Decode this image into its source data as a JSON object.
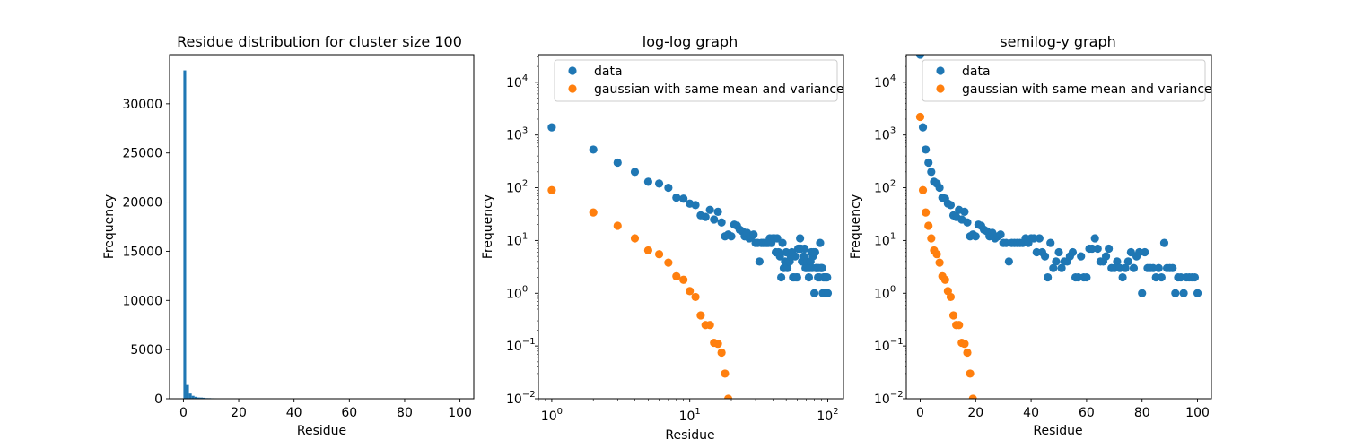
{
  "chart_data": [
    {
      "type": "bar",
      "title": "Residue distribution for cluster size 100",
      "xlabel": "Residue",
      "ylabel": "Frequency",
      "xlim": [
        -5,
        105
      ],
      "ylim": [
        0,
        35000
      ],
      "xticks": [
        0,
        20,
        40,
        60,
        80,
        100
      ],
      "yticks": [
        0,
        5000,
        10000,
        15000,
        20000,
        25000,
        30000
      ],
      "bin_width": 1,
      "bins": [
        {
          "x": 0,
          "value": 33400
        },
        {
          "x": 1,
          "value": 1400
        },
        {
          "x": 2,
          "value": 530
        },
        {
          "x": 3,
          "value": 300
        },
        {
          "x": 4,
          "value": 200
        },
        {
          "x": 5,
          "value": 130
        },
        {
          "x": 6,
          "value": 120
        },
        {
          "x": 7,
          "value": 100
        },
        {
          "x": 8,
          "value": 65
        },
        {
          "x": 9,
          "value": 62
        },
        {
          "x": 10,
          "value": 50
        },
        {
          "x": 11,
          "value": 47
        },
        {
          "x": 12,
          "value": 30
        },
        {
          "x": 13,
          "value": 28
        },
        {
          "x": 14,
          "value": 38
        }
      ],
      "color": "#1f77b4"
    },
    {
      "type": "scatter",
      "title": "log-log graph",
      "xlabel": "Residue",
      "ylabel": "Frequency",
      "xscale": "log",
      "yscale": "log",
      "xlim": [
        0.8,
        130
      ],
      "ylim": [
        0.01,
        33400
      ],
      "xticks": [
        {
          "value": 1,
          "base": "10",
          "exp": "0"
        },
        {
          "value": 10,
          "base": "10",
          "exp": "1"
        },
        {
          "value": 100,
          "base": "10",
          "exp": "2"
        }
      ],
      "yticks": [
        {
          "value": 0.01,
          "base": "10",
          "exp": "−2"
        },
        {
          "value": 0.1,
          "base": "10",
          "exp": "−1"
        },
        {
          "value": 1,
          "base": "10",
          "exp": "0"
        },
        {
          "value": 10,
          "base": "10",
          "exp": "1"
        },
        {
          "value": 100,
          "base": "10",
          "exp": "2"
        },
        {
          "value": 1000,
          "base": "10",
          "exp": "3"
        },
        {
          "value": 10000,
          "base": "10",
          "exp": "4"
        }
      ],
      "legend_position": "top-right",
      "series": [
        {
          "name": "data",
          "color": "#1f77b4",
          "points": [
            [
              1,
              1400
            ],
            [
              2,
              530
            ],
            [
              3,
              300
            ],
            [
              4,
              200
            ],
            [
              5,
              130
            ],
            [
              6,
              120
            ],
            [
              7,
              100
            ],
            [
              8,
              65
            ],
            [
              9,
              62
            ],
            [
              10,
              50
            ],
            [
              11,
              47
            ],
            [
              12,
              30
            ],
            [
              13,
              28
            ],
            [
              14,
              38
            ],
            [
              15,
              25
            ],
            [
              16,
              35
            ],
            [
              17,
              22
            ],
            [
              18,
              12
            ],
            [
              19,
              13
            ],
            [
              20,
              12
            ],
            [
              21,
              20
            ],
            [
              22,
              19
            ],
            [
              23,
              16
            ],
            [
              24,
              15
            ],
            [
              25,
              12
            ],
            [
              26,
              14
            ],
            [
              27,
              11
            ],
            [
              28,
              12
            ],
            [
              29,
              13
            ],
            [
              30,
              9
            ],
            [
              31,
              9
            ],
            [
              32,
              4
            ],
            [
              33,
              9
            ],
            [
              34,
              9
            ],
            [
              35,
              9
            ],
            [
              36,
              9
            ],
            [
              37,
              9
            ],
            [
              38,
              11
            ],
            [
              39,
              9
            ],
            [
              40,
              11
            ],
            [
              41,
              11
            ],
            [
              42,
              6
            ],
            [
              43,
              11
            ],
            [
              44,
              6
            ],
            [
              45,
              5
            ],
            [
              46,
              2
            ],
            [
              47,
              9
            ],
            [
              48,
              3
            ],
            [
              49,
              4
            ],
            [
              50,
              6
            ],
            [
              51,
              3
            ],
            [
              52,
              4
            ],
            [
              53,
              4
            ],
            [
              54,
              5
            ],
            [
              55,
              6
            ],
            [
              56,
              2
            ],
            [
              57,
              2
            ],
            [
              58,
              5
            ],
            [
              59,
              2
            ],
            [
              60,
              2
            ],
            [
              61,
              7
            ],
            [
              62,
              7
            ],
            [
              63,
              11
            ],
            [
              64,
              7
            ],
            [
              65,
              4
            ],
            [
              66,
              4
            ],
            [
              67,
              5
            ],
            [
              68,
              7
            ],
            [
              69,
              3
            ],
            [
              70,
              3
            ],
            [
              71,
              4
            ],
            [
              72,
              3
            ],
            [
              73,
              2
            ],
            [
              74,
              3
            ],
            [
              75,
              4
            ],
            [
              76,
              6
            ],
            [
              77,
              3
            ],
            [
              78,
              5
            ],
            [
              79,
              6
            ],
            [
              80,
              1
            ],
            [
              81,
              6
            ],
            [
              82,
              3
            ],
            [
              83,
              3
            ],
            [
              84,
              3
            ],
            [
              85,
              2
            ],
            [
              86,
              3
            ],
            [
              87,
              2
            ],
            [
              88,
              9
            ],
            [
              89,
              3
            ],
            [
              90,
              3
            ],
            [
              91,
              3
            ],
            [
              92,
              1
            ],
            [
              93,
              2
            ],
            [
              94,
              2
            ],
            [
              95,
              1
            ],
            [
              96,
              2
            ],
            [
              97,
              2
            ],
            [
              98,
              2
            ],
            [
              99,
              2
            ],
            [
              100,
              1
            ]
          ]
        },
        {
          "name": "gaussian with same mean and variance",
          "color": "#ff7f0e",
          "points": [
            [
              1,
              90
            ],
            [
              2,
              34
            ],
            [
              3,
              19
            ],
            [
              4,
              11
            ],
            [
              5,
              6.5
            ],
            [
              6,
              5.5
            ],
            [
              7,
              3.8
            ],
            [
              8,
              2.1
            ],
            [
              9,
              1.8
            ],
            [
              10,
              1.1
            ],
            [
              11,
              0.85
            ],
            [
              12,
              0.38
            ],
            [
              13,
              0.25
            ],
            [
              14,
              0.25
            ],
            [
              15,
              0.115
            ],
            [
              16,
              0.11
            ],
            [
              17,
              0.075
            ],
            [
              18,
              0.03
            ],
            [
              19,
              0.01
            ]
          ]
        }
      ]
    },
    {
      "type": "scatter",
      "title": "semilog-y graph",
      "xlabel": "Residue",
      "ylabel": "Frequency",
      "xscale": "linear",
      "yscale": "log",
      "xlim": [
        -5,
        105
      ],
      "ylim": [
        0.01,
        33400
      ],
      "xticks": [
        {
          "value": 0,
          "label": "0"
        },
        {
          "value": 20,
          "label": "20"
        },
        {
          "value": 40,
          "label": "40"
        },
        {
          "value": 60,
          "label": "60"
        },
        {
          "value": 80,
          "label": "80"
        },
        {
          "value": 100,
          "label": "100"
        }
      ],
      "yticks": [
        {
          "value": 0.01,
          "base": "10",
          "exp": "−2"
        },
        {
          "value": 0.1,
          "base": "10",
          "exp": "−1"
        },
        {
          "value": 1,
          "base": "10",
          "exp": "0"
        },
        {
          "value": 10,
          "base": "10",
          "exp": "1"
        },
        {
          "value": 100,
          "base": "10",
          "exp": "2"
        },
        {
          "value": 1000,
          "base": "10",
          "exp": "3"
        },
        {
          "value": 10000,
          "base": "10",
          "exp": "4"
        }
      ],
      "legend_position": "top-right",
      "series": [
        {
          "name": "data",
          "color": "#1f77b4",
          "points": [
            [
              0,
              33400
            ],
            [
              1,
              1400
            ],
            [
              2,
              530
            ],
            [
              3,
              300
            ],
            [
              4,
              200
            ],
            [
              5,
              130
            ],
            [
              6,
              120
            ],
            [
              7,
              100
            ],
            [
              8,
              65
            ],
            [
              9,
              62
            ],
            [
              10,
              50
            ],
            [
              11,
              47
            ],
            [
              12,
              30
            ],
            [
              13,
              28
            ],
            [
              14,
              38
            ],
            [
              15,
              25
            ],
            [
              16,
              35
            ],
            [
              17,
              22
            ],
            [
              18,
              12
            ],
            [
              19,
              13
            ],
            [
              20,
              12
            ],
            [
              21,
              20
            ],
            [
              22,
              19
            ],
            [
              23,
              16
            ],
            [
              24,
              15
            ],
            [
              25,
              12
            ],
            [
              26,
              14
            ],
            [
              27,
              11
            ],
            [
              28,
              12
            ],
            [
              29,
              13
            ],
            [
              30,
              9
            ],
            [
              31,
              9
            ],
            [
              32,
              4
            ],
            [
              33,
              9
            ],
            [
              34,
              9
            ],
            [
              35,
              9
            ],
            [
              36,
              9
            ],
            [
              37,
              9
            ],
            [
              38,
              11
            ],
            [
              39,
              9
            ],
            [
              40,
              11
            ],
            [
              41,
              11
            ],
            [
              42,
              6
            ],
            [
              43,
              11
            ],
            [
              44,
              6
            ],
            [
              45,
              5
            ],
            [
              46,
              2
            ],
            [
              47,
              9
            ],
            [
              48,
              3
            ],
            [
              49,
              4
            ],
            [
              50,
              6
            ],
            [
              51,
              3
            ],
            [
              52,
              4
            ],
            [
              53,
              4
            ],
            [
              54,
              5
            ],
            [
              55,
              6
            ],
            [
              56,
              2
            ],
            [
              57,
              2
            ],
            [
              58,
              5
            ],
            [
              59,
              2
            ],
            [
              60,
              2
            ],
            [
              61,
              7
            ],
            [
              62,
              7
            ],
            [
              63,
              11
            ],
            [
              64,
              7
            ],
            [
              65,
              4
            ],
            [
              66,
              4
            ],
            [
              67,
              5
            ],
            [
              68,
              7
            ],
            [
              69,
              3
            ],
            [
              70,
              3
            ],
            [
              71,
              4
            ],
            [
              72,
              3
            ],
            [
              73,
              2
            ],
            [
              74,
              3
            ],
            [
              75,
              4
            ],
            [
              76,
              6
            ],
            [
              77,
              3
            ],
            [
              78,
              5
            ],
            [
              79,
              6
            ],
            [
              80,
              1
            ],
            [
              81,
              6
            ],
            [
              82,
              3
            ],
            [
              83,
              3
            ],
            [
              84,
              3
            ],
            [
              85,
              2
            ],
            [
              86,
              3
            ],
            [
              87,
              2
            ],
            [
              88,
              9
            ],
            [
              89,
              3
            ],
            [
              90,
              3
            ],
            [
              91,
              3
            ],
            [
              92,
              1
            ],
            [
              93,
              2
            ],
            [
              94,
              2
            ],
            [
              95,
              1
            ],
            [
              96,
              2
            ],
            [
              97,
              2
            ],
            [
              98,
              2
            ],
            [
              99,
              2
            ],
            [
              100,
              1
            ]
          ]
        },
        {
          "name": "gaussian with same mean and variance",
          "color": "#ff7f0e",
          "points": [
            [
              0,
              2200
            ],
            [
              1,
              90
            ],
            [
              2,
              34
            ],
            [
              3,
              19
            ],
            [
              4,
              11
            ],
            [
              5,
              6.5
            ],
            [
              6,
              5.5
            ],
            [
              7,
              3.8
            ],
            [
              8,
              2.1
            ],
            [
              9,
              1.8
            ],
            [
              10,
              1.1
            ],
            [
              11,
              0.85
            ],
            [
              12,
              0.38
            ],
            [
              13,
              0.25
            ],
            [
              14,
              0.25
            ],
            [
              15,
              0.115
            ],
            [
              16,
              0.11
            ],
            [
              17,
              0.075
            ],
            [
              18,
              0.03
            ],
            [
              19,
              0.01
            ]
          ]
        }
      ]
    }
  ]
}
